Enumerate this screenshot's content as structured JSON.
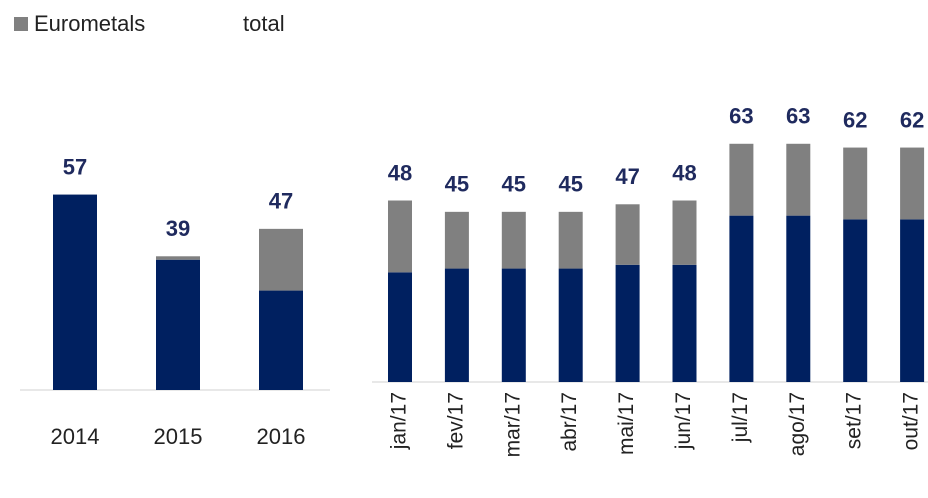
{
  "legend": [
    {
      "name": "Eurometals",
      "color": "#808080"
    },
    {
      "name": "total"
    }
  ],
  "chart_data": [
    {
      "type": "bar",
      "stacked": true,
      "categories": [
        "2014",
        "2015",
        "2016"
      ],
      "series": [
        {
          "color": "#002060",
          "values": [
            57,
            38,
            29
          ]
        },
        {
          "color": "#808080",
          "values": [
            0,
            1,
            18
          ]
        }
      ],
      "total": {
        "color": "#1f2a5e",
        "values": [
          57,
          39,
          47
        ]
      },
      "ylim": [
        0,
        70
      ]
    },
    {
      "type": "bar",
      "stacked": true,
      "categories": [
        "jan/17",
        "fev/17",
        "mar/17",
        "abr/17",
        "mai/17",
        "jun/17",
        "jul/17",
        "ago/17",
        "set/17",
        "out/17"
      ],
      "series": [
        {
          "color": "#002060",
          "values": [
            29,
            30,
            30,
            30,
            31,
            31,
            44,
            44,
            43,
            43
          ]
        },
        {
          "color": "#808080",
          "values": [
            19,
            15,
            15,
            15,
            16,
            17,
            19,
            19,
            19,
            19
          ]
        }
      ],
      "total": {
        "color": "#1f2a5e",
        "values": [
          48,
          45,
          45,
          45,
          47,
          48,
          63,
          63,
          62,
          62
        ]
      },
      "ylim": [
        0,
        64
      ]
    }
  ]
}
